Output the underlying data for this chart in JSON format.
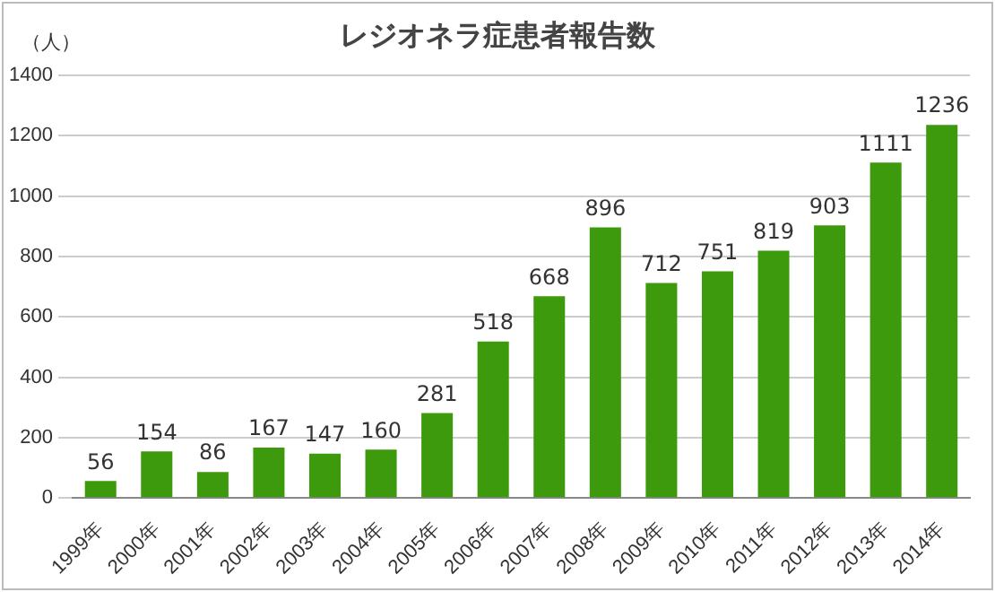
{
  "chart_data": {
    "type": "bar",
    "title": "レジオネラ症患者報告数",
    "ylabel": "（人）",
    "categories": [
      "1999年",
      "2000年",
      "2001年",
      "2002年",
      "2003年",
      "2004年",
      "2005年",
      "2006年",
      "2007年",
      "2008年",
      "2009年",
      "2010年",
      "2011年",
      "2012年",
      "2013年",
      "2014年"
    ],
    "values": [
      56,
      154,
      86,
      167,
      147,
      160,
      281,
      518,
      668,
      896,
      712,
      751,
      819,
      903,
      1111,
      1236
    ],
    "color": "#3c9a0c",
    "ylim": [
      0,
      1400
    ],
    "yticks": [
      0,
      200,
      400,
      600,
      800,
      1000,
      1200,
      1400
    ],
    "grid": "y",
    "data_labels": true,
    "legend": false
  }
}
